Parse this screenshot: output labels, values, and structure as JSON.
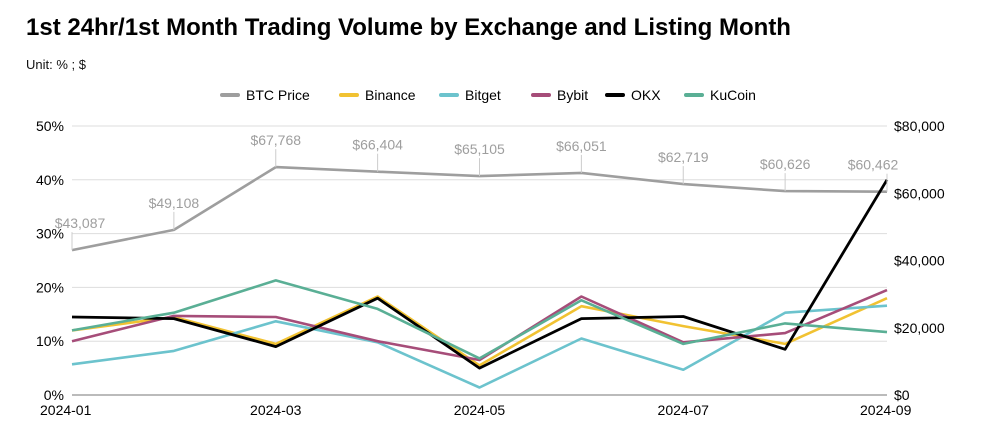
{
  "title": "1st 24hr/1st Month Trading Volume by Exchange and Listing Month",
  "subtitle": "Unit: % ; $",
  "chart_data": {
    "type": "line",
    "x": [
      "2024-01",
      "2024-02",
      "2024-03",
      "2024-04",
      "2024-05",
      "2024-06",
      "2024-07",
      "2024-08",
      "2024-09"
    ],
    "x_tick_labels": [
      "2024-01",
      "2024-03",
      "2024-05",
      "2024-07",
      "2024-09"
    ],
    "y_left": {
      "min": 0,
      "max": 50,
      "ticks": [
        "0%",
        "10%",
        "20%",
        "30%",
        "40%",
        "50%"
      ]
    },
    "y_right": {
      "min": 0,
      "max": 80000,
      "ticks": [
        "$0",
        "$20,000",
        "$40,000",
        "$60,000",
        "$80,000"
      ]
    },
    "grid": true,
    "legend_position": "top",
    "series": [
      {
        "name": "BTC Price",
        "axis": "right",
        "color": "#9e9e9e",
        "values": [
          43087,
          49108,
          67768,
          66404,
          65105,
          66051,
          62719,
          60626,
          60462
        ],
        "labels": [
          "$43,087",
          "$49,108",
          "$67,768",
          "$66,404",
          "$65,105",
          "$66,051",
          "$62,719",
          "$60,626",
          "$60,462"
        ]
      },
      {
        "name": "Binance",
        "axis": "left",
        "color": "#f1c232",
        "values": [
          12,
          14.5,
          9.5,
          18.3,
          5.5,
          16.5,
          12.8,
          9.5,
          18
        ]
      },
      {
        "name": "Bitget",
        "axis": "left",
        "color": "#6cc3cd",
        "values": [
          5.7,
          8.2,
          13.7,
          9.8,
          1.4,
          10.5,
          4.7,
          15.3,
          16.6
        ]
      },
      {
        "name": "Bybit",
        "axis": "left",
        "color": "#a64d79",
        "values": [
          10,
          14.7,
          14.5,
          10,
          6.5,
          18.3,
          9.8,
          11.5,
          19.5
        ]
      },
      {
        "name": "OKX",
        "axis": "left",
        "color": "#000000",
        "values": [
          14.5,
          14.2,
          9,
          18,
          5,
          14.2,
          14.6,
          8.5,
          40
        ]
      },
      {
        "name": "KuCoin",
        "axis": "left",
        "color": "#5aaf95",
        "values": [
          12,
          15.3,
          21.3,
          16,
          6.8,
          17.6,
          9.5,
          13.3,
          11.7
        ]
      }
    ]
  }
}
